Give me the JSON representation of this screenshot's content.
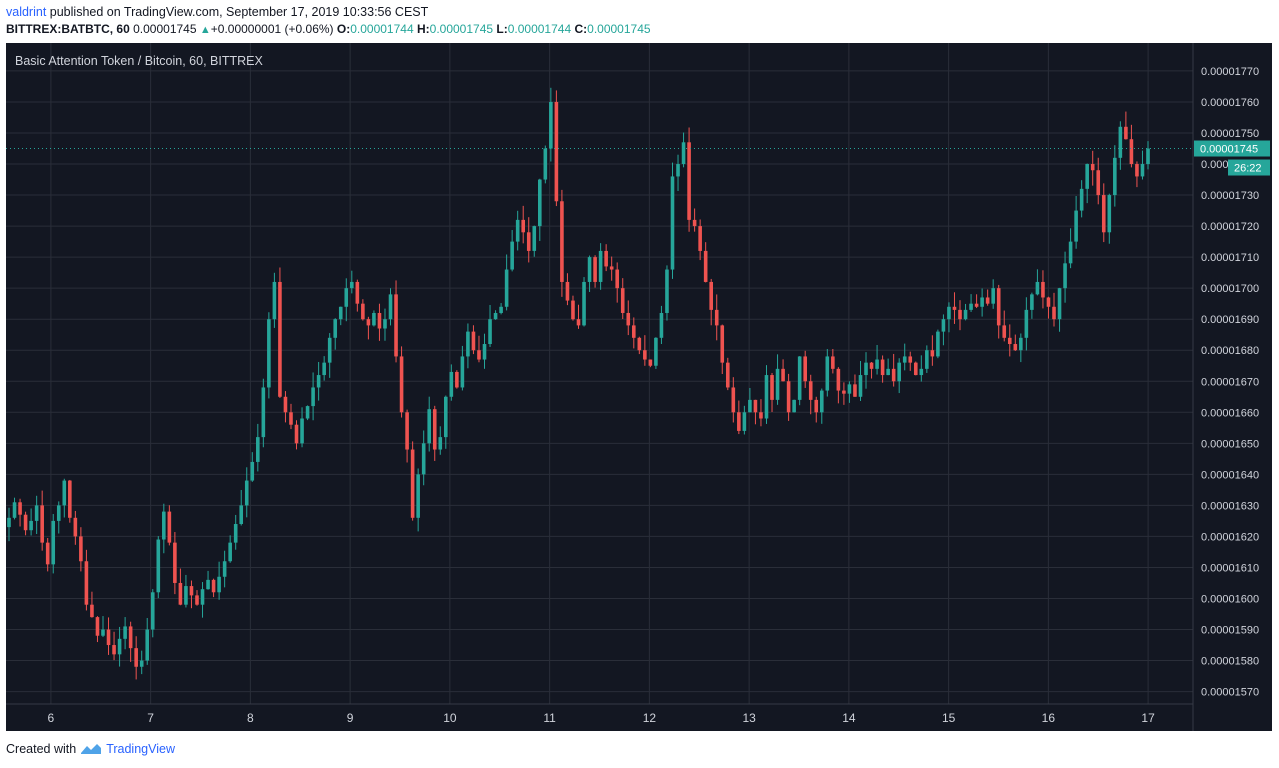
{
  "header": {
    "user": "valdrint",
    "published": "published on TradingView.com, September 17, 2019 10:33:56 CEST",
    "symbol": "BITTREX:BATBTC, 60",
    "last": "0.00001745",
    "change": "+0.00000001 (+0.06%)",
    "o_label": "O:",
    "o": "0.00001744",
    "h_label": "H:",
    "h": "0.00001745",
    "l_label": "L:",
    "l": "0.00001744",
    "c_label": "C:",
    "c": "0.00001745"
  },
  "footer": {
    "created": "Created with",
    "brand": "TradingView"
  },
  "colors": {
    "background": "#131722",
    "up": "#26a69a",
    "down": "#ef5350",
    "grid": "#2a2e39",
    "text": "#d1d4dc"
  },
  "chart_data": {
    "type": "candlestick",
    "title": "Basic Attention Token / Bitcoin, 60, BITTREX",
    "x_ticks": [
      "6",
      "7",
      "8",
      "9",
      "10",
      "11",
      "12",
      "13",
      "14",
      "15",
      "16",
      "17"
    ],
    "y_ticks": [
      "0.00001570",
      "0.00001580",
      "0.00001590",
      "0.00001600",
      "0.00001610",
      "0.00001620",
      "0.00001630",
      "0.00001640",
      "0.00001650",
      "0.00001660",
      "0.00001670",
      "0.00001680",
      "0.00001690",
      "0.00001700",
      "0.00001710",
      "0.00001720",
      "0.00001730",
      "0.00001740",
      "0.00001750",
      "0.00001760",
      "0.00001770"
    ],
    "ylim": [
      1.566e-05,
      1.779e-05
    ],
    "price_unit": 1e-08,
    "last_price": 1745,
    "last_price_label": "0.00001745",
    "countdown": "26:22",
    "days_shown": 11.9,
    "closes": [
      1626,
      1631,
      1627,
      1622,
      1625,
      1630,
      1618,
      1611,
      1625,
      1630,
      1638,
      1626,
      1620,
      1612,
      1598,
      1594,
      1588,
      1590,
      1585,
      1582,
      1587,
      1591,
      1584,
      1578,
      1580,
      1590,
      1602,
      1619,
      1628,
      1618,
      1605,
      1598,
      1604,
      1601,
      1598,
      1603,
      1606,
      1602,
      1607,
      1612,
      1618,
      1624,
      1630,
      1638,
      1644,
      1652,
      1668,
      1690,
      1702,
      1665,
      1660,
      1656,
      1650,
      1658,
      1662,
      1668,
      1672,
      1676,
      1684,
      1690,
      1694,
      1700,
      1702,
      1695,
      1690,
      1688,
      1692,
      1687,
      1690,
      1698,
      1678,
      1660,
      1648,
      1626,
      1640,
      1650,
      1661,
      1648,
      1652,
      1665,
      1673,
      1668,
      1678,
      1686,
      1680,
      1677,
      1682,
      1690,
      1692,
      1694,
      1706,
      1715,
      1722,
      1718,
      1712,
      1720,
      1735,
      1745,
      1760,
      1728,
      1702,
      1696,
      1690,
      1688,
      1702,
      1710,
      1702,
      1712,
      1707,
      1706,
      1700,
      1692,
      1688,
      1684,
      1680,
      1677,
      1675,
      1684,
      1692,
      1706,
      1736,
      1740,
      1747,
      1722,
      1720,
      1712,
      1702,
      1693,
      1688,
      1676,
      1668,
      1660,
      1654,
      1660,
      1664,
      1660,
      1658,
      1672,
      1664,
      1674,
      1670,
      1660,
      1664,
      1678,
      1670,
      1664,
      1660,
      1667,
      1678,
      1674,
      1667,
      1666,
      1669,
      1665,
      1672,
      1676,
      1674,
      1677,
      1672,
      1674,
      1670,
      1676,
      1678,
      1676,
      1672,
      1674,
      1680,
      1678,
      1686,
      1690,
      1694,
      1693,
      1690,
      1693,
      1695,
      1694,
      1697,
      1695,
      1700,
      1688,
      1684,
      1682,
      1680,
      1684,
      1693,
      1698,
      1702,
      1697,
      1694,
      1690,
      1700,
      1708,
      1715,
      1725,
      1732,
      1740,
      1738,
      1730,
      1718,
      1730,
      1742,
      1752,
      1748,
      1740,
      1736,
      1740,
      1745
    ]
  }
}
